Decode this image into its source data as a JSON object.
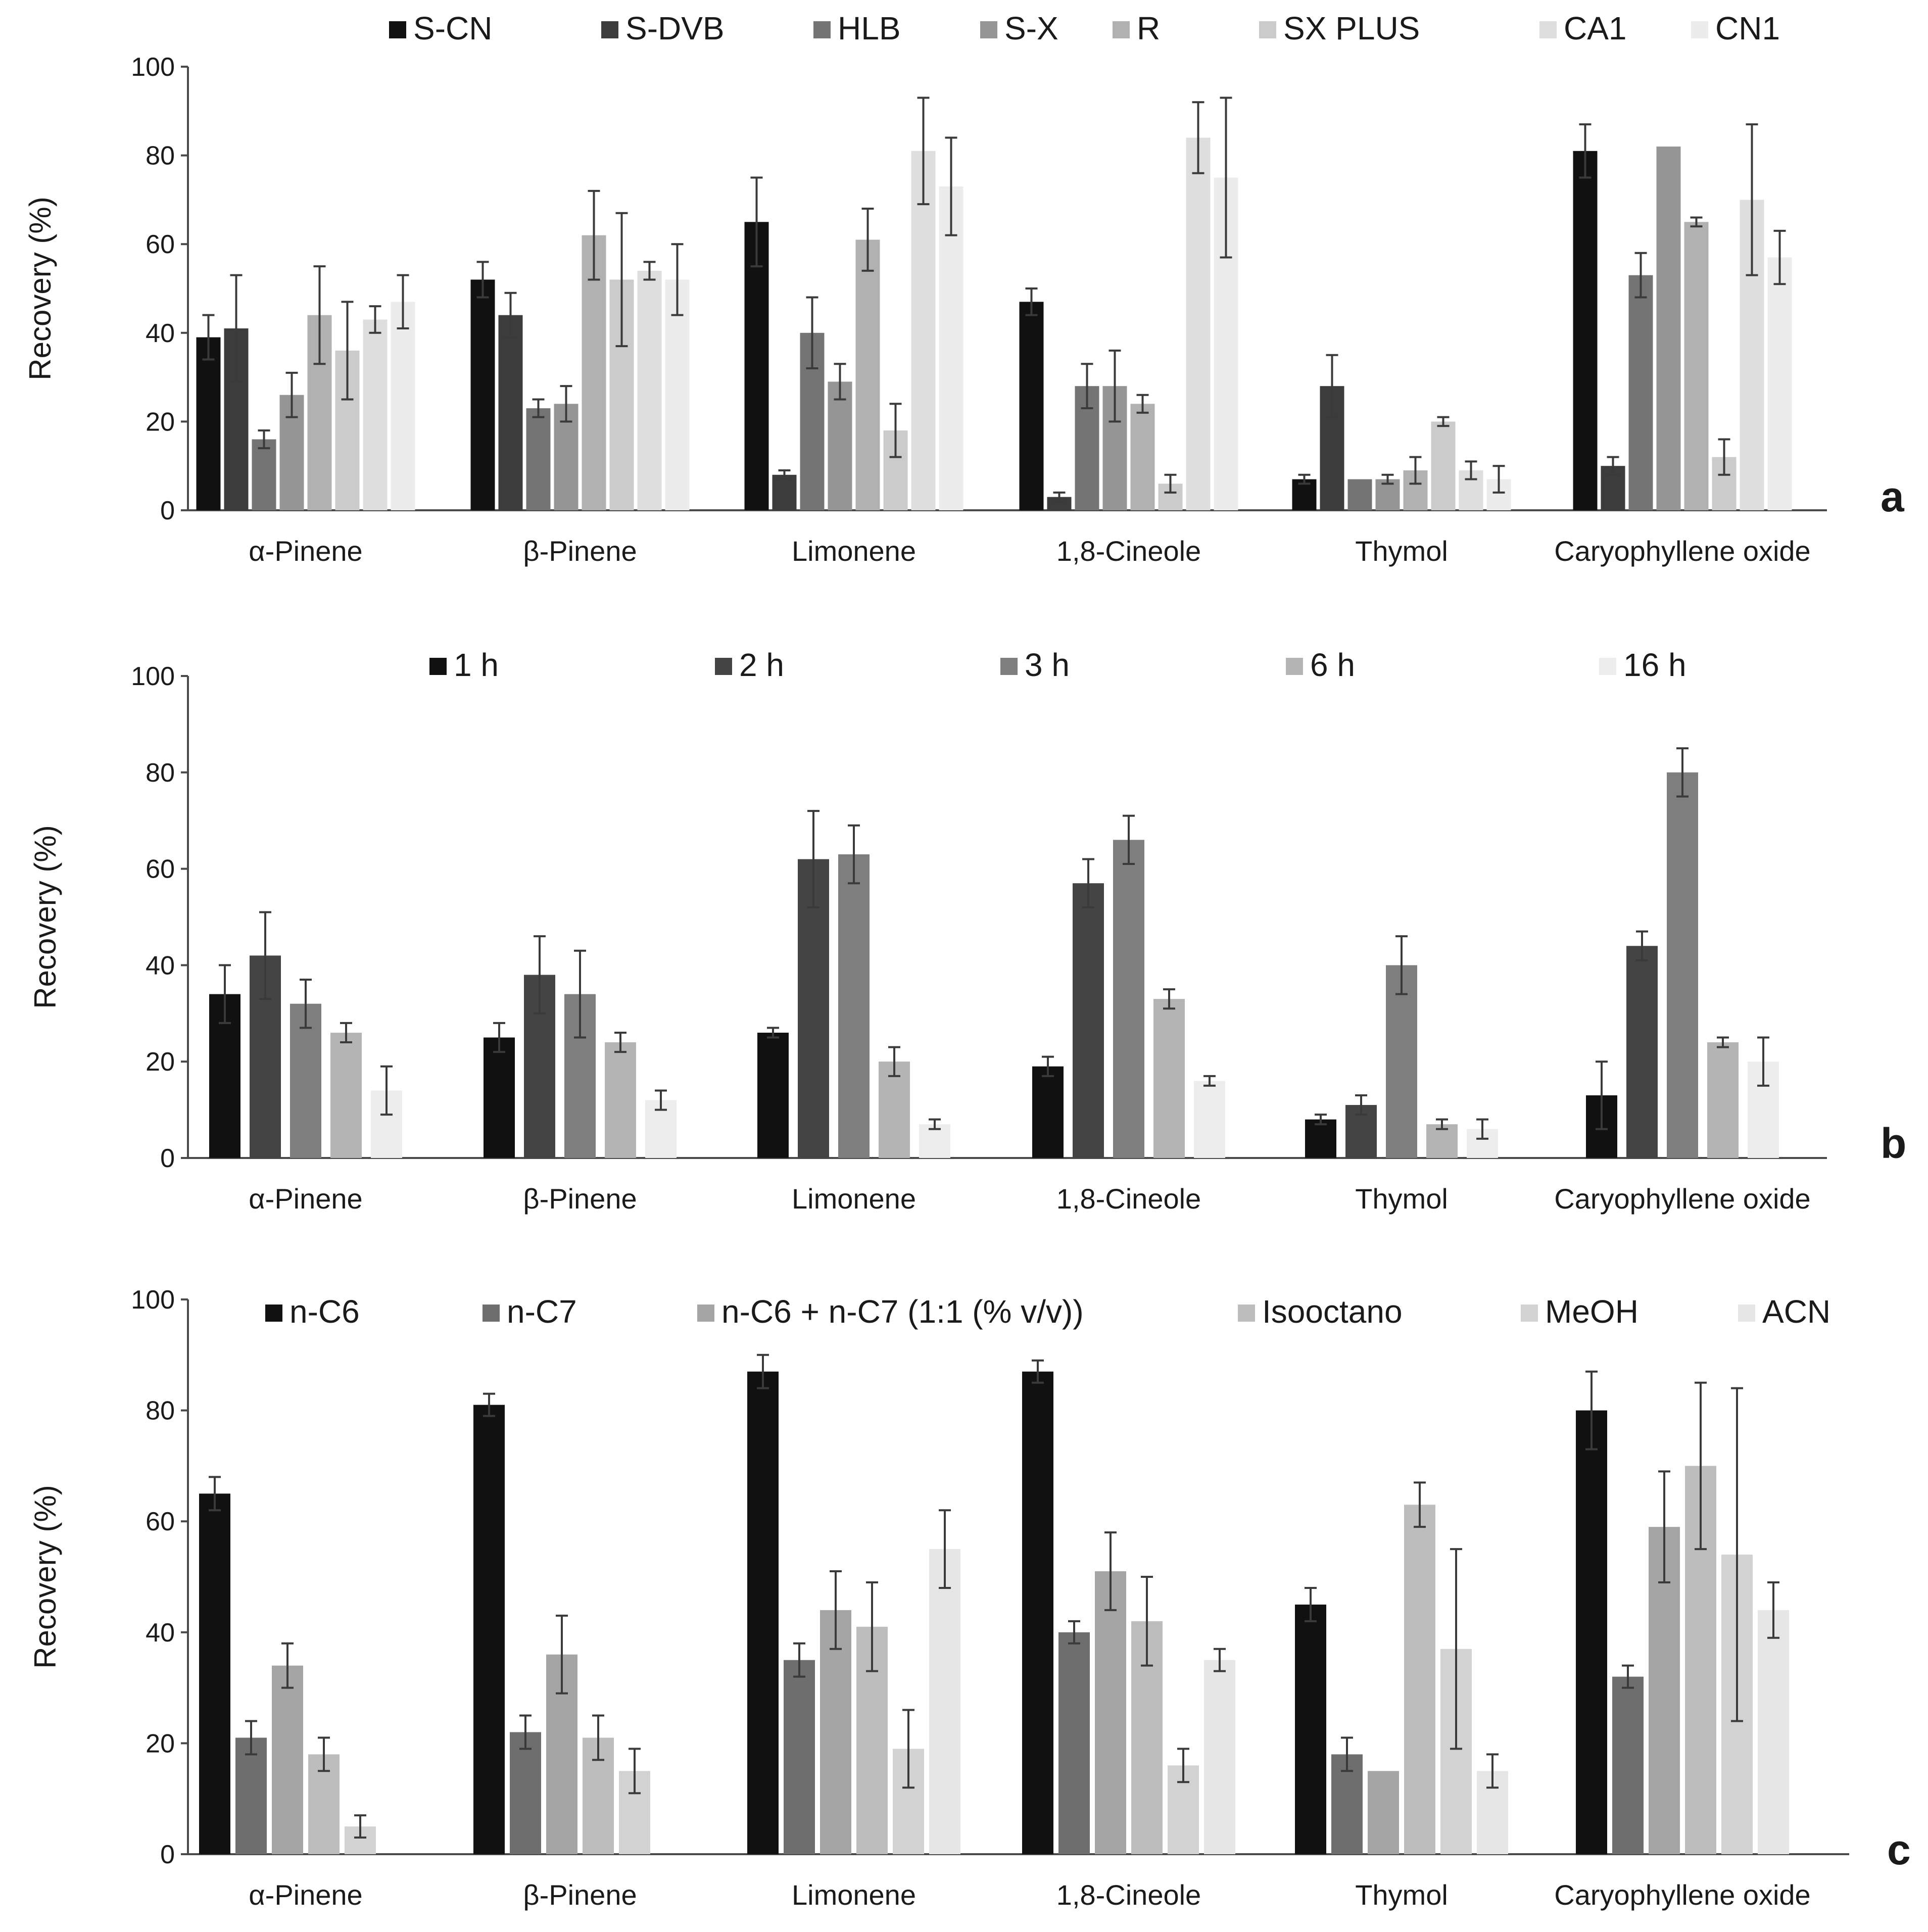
{
  "chart_data": [
    {
      "type": "bar",
      "panel_label": "a",
      "ylabel": "Recovery (%)",
      "ylim": [
        0,
        100
      ],
      "yticks": [
        "0",
        "20",
        "40",
        "60",
        "80",
        "100"
      ],
      "categories": [
        "α-Pinene",
        "β-Pinene",
        "Limonene",
        "1,8-Cineole",
        "Thymol",
        "Caryophyllene oxide"
      ],
      "legend_position": "top",
      "series": [
        {
          "name": "S-CN",
          "color": "#111111",
          "values": [
            39,
            52,
            65,
            47,
            7,
            81
          ],
          "errors": [
            5,
            4,
            10,
            3,
            1,
            6
          ]
        },
        {
          "name": "S-DVB",
          "color": "#3c3c3c",
          "values": [
            41,
            44,
            8,
            3,
            28,
            10
          ],
          "errors": [
            12,
            5,
            1,
            1,
            7,
            2
          ]
        },
        {
          "name": "HLB",
          "color": "#747474",
          "values": [
            16,
            23,
            40,
            28,
            7,
            53
          ],
          "errors": [
            2,
            2,
            8,
            5,
            0,
            5
          ]
        },
        {
          "name": "S-X",
          "color": "#959595",
          "values": [
            26,
            24,
            29,
            28,
            7,
            82
          ],
          "errors": [
            5,
            4,
            4,
            8,
            1,
            0
          ]
        },
        {
          "name": "R",
          "color": "#b1b1b1",
          "values": [
            44,
            62,
            61,
            24,
            9,
            65
          ],
          "errors": [
            11,
            10,
            7,
            2,
            3,
            1
          ]
        },
        {
          "name": "SX PLUS",
          "color": "#cbcbcb",
          "values": [
            36,
            52,
            18,
            6,
            20,
            12
          ],
          "errors": [
            11,
            15,
            6,
            2,
            1,
            4
          ]
        },
        {
          "name": "CA1",
          "color": "#dedede",
          "values": [
            43,
            54,
            81,
            84,
            9,
            70
          ],
          "errors": [
            3,
            2,
            12,
            8,
            2,
            17
          ]
        },
        {
          "name": "CN1",
          "color": "#ececec",
          "values": [
            47,
            52,
            73,
            75,
            7,
            57
          ],
          "errors": [
            6,
            8,
            11,
            18,
            3,
            6
          ]
        }
      ]
    },
    {
      "type": "bar",
      "panel_label": "b",
      "ylabel": "Recovery (%)",
      "ylim": [
        0,
        100
      ],
      "yticks": [
        "0",
        "20",
        "40",
        "60",
        "80",
        "100"
      ],
      "categories": [
        "α-Pinene",
        "β-Pinene",
        "Limonene",
        "1,8-Cineole",
        "Thymol",
        "Caryophyllene oxide"
      ],
      "legend_position": "top",
      "series": [
        {
          "name": "1 h",
          "color": "#111111",
          "values": [
            34,
            25,
            26,
            19,
            8,
            13
          ],
          "errors": [
            6,
            3,
            1,
            2,
            1,
            7
          ]
        },
        {
          "name": "2 h",
          "color": "#444444",
          "values": [
            42,
            38,
            62,
            57,
            11,
            44
          ],
          "errors": [
            9,
            8,
            10,
            5,
            2,
            3
          ]
        },
        {
          "name": "3 h",
          "color": "#7e7e7e",
          "values": [
            32,
            34,
            63,
            66,
            40,
            80
          ],
          "errors": [
            5,
            9,
            6,
            5,
            6,
            5
          ]
        },
        {
          "name": "6 h",
          "color": "#b4b4b4",
          "values": [
            26,
            24,
            20,
            33,
            7,
            24
          ],
          "errors": [
            2,
            2,
            3,
            2,
            1,
            1
          ]
        },
        {
          "name": "16 h",
          "color": "#ededed",
          "values": [
            14,
            12,
            7,
            16,
            6,
            20
          ],
          "errors": [
            5,
            2,
            1,
            1,
            2,
            5
          ]
        }
      ]
    },
    {
      "type": "bar",
      "panel_label": "c",
      "ylabel": "Recovery (%)",
      "ylim": [
        0,
        100
      ],
      "yticks": [
        "0",
        "20",
        "40",
        "60",
        "80",
        "100"
      ],
      "categories": [
        "α-Pinene",
        "β-Pinene",
        "Limonene",
        "1,8-Cineole",
        "Thymol",
        "Caryophyllene oxide"
      ],
      "legend_position": "top",
      "series": [
        {
          "name": "n-C6",
          "color": "#111111",
          "values": [
            65,
            81,
            87,
            87,
            45,
            80
          ],
          "errors": [
            3,
            2,
            3,
            2,
            3,
            7
          ]
        },
        {
          "name": "n-C7",
          "color": "#6e6e6e",
          "values": [
            21,
            22,
            35,
            40,
            18,
            32
          ],
          "errors": [
            3,
            3,
            3,
            2,
            3,
            2
          ]
        },
        {
          "name": "n-C6 + n-C7 (1:1 (% v/v))",
          "color": "#a5a5a5",
          "values": [
            34,
            36,
            44,
            51,
            15,
            59
          ],
          "errors": [
            4,
            7,
            7,
            7,
            0,
            10
          ]
        },
        {
          "name": "Isooctano",
          "color": "#bdbdbd",
          "values": [
            18,
            21,
            41,
            42,
            63,
            70
          ],
          "errors": [
            3,
            4,
            8,
            8,
            4,
            15
          ]
        },
        {
          "name": "MeOH",
          "color": "#d2d2d2",
          "values": [
            5,
            15,
            19,
            16,
            37,
            54
          ],
          "errors": [
            2,
            4,
            7,
            3,
            18,
            30
          ]
        },
        {
          "name": "ACN",
          "color": "#e6e6e6",
          "values": [
            0,
            0,
            55,
            35,
            15,
            44
          ],
          "errors": [
            0,
            0,
            7,
            2,
            3,
            5
          ]
        }
      ]
    }
  ]
}
